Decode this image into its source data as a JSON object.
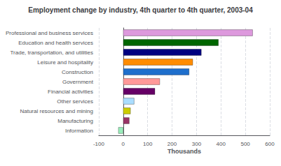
{
  "chart_data": {
    "type": "bar",
    "orientation": "horizontal",
    "title": "Employment change by industry, 4th quarter to 4th quarter, 2003-04",
    "categories": [
      "Professional and business services",
      "Education and health services",
      "Trade, transportation, and utilities",
      "Leisure and hospitality",
      "Construction",
      "Government",
      "Financial activities",
      "Other services",
      "Natural resources and mining",
      "Manufacturing",
      "Information"
    ],
    "values": [
      530,
      390,
      320,
      285,
      270,
      150,
      130,
      45,
      30,
      25,
      -20
    ],
    "colors": [
      "#dd99dd",
      "#006600",
      "#000080",
      "#ff8c00",
      "#1e6fcc",
      "#ff9999",
      "#660066",
      "#aaddff",
      "#cccc00",
      "#993366",
      "#99eebb"
    ],
    "xlabel": "Thousands",
    "xlim": [
      -100,
      600
    ],
    "xticks": [
      -100,
      0,
      100,
      200,
      300,
      400,
      500,
      600
    ],
    "grid": true
  }
}
